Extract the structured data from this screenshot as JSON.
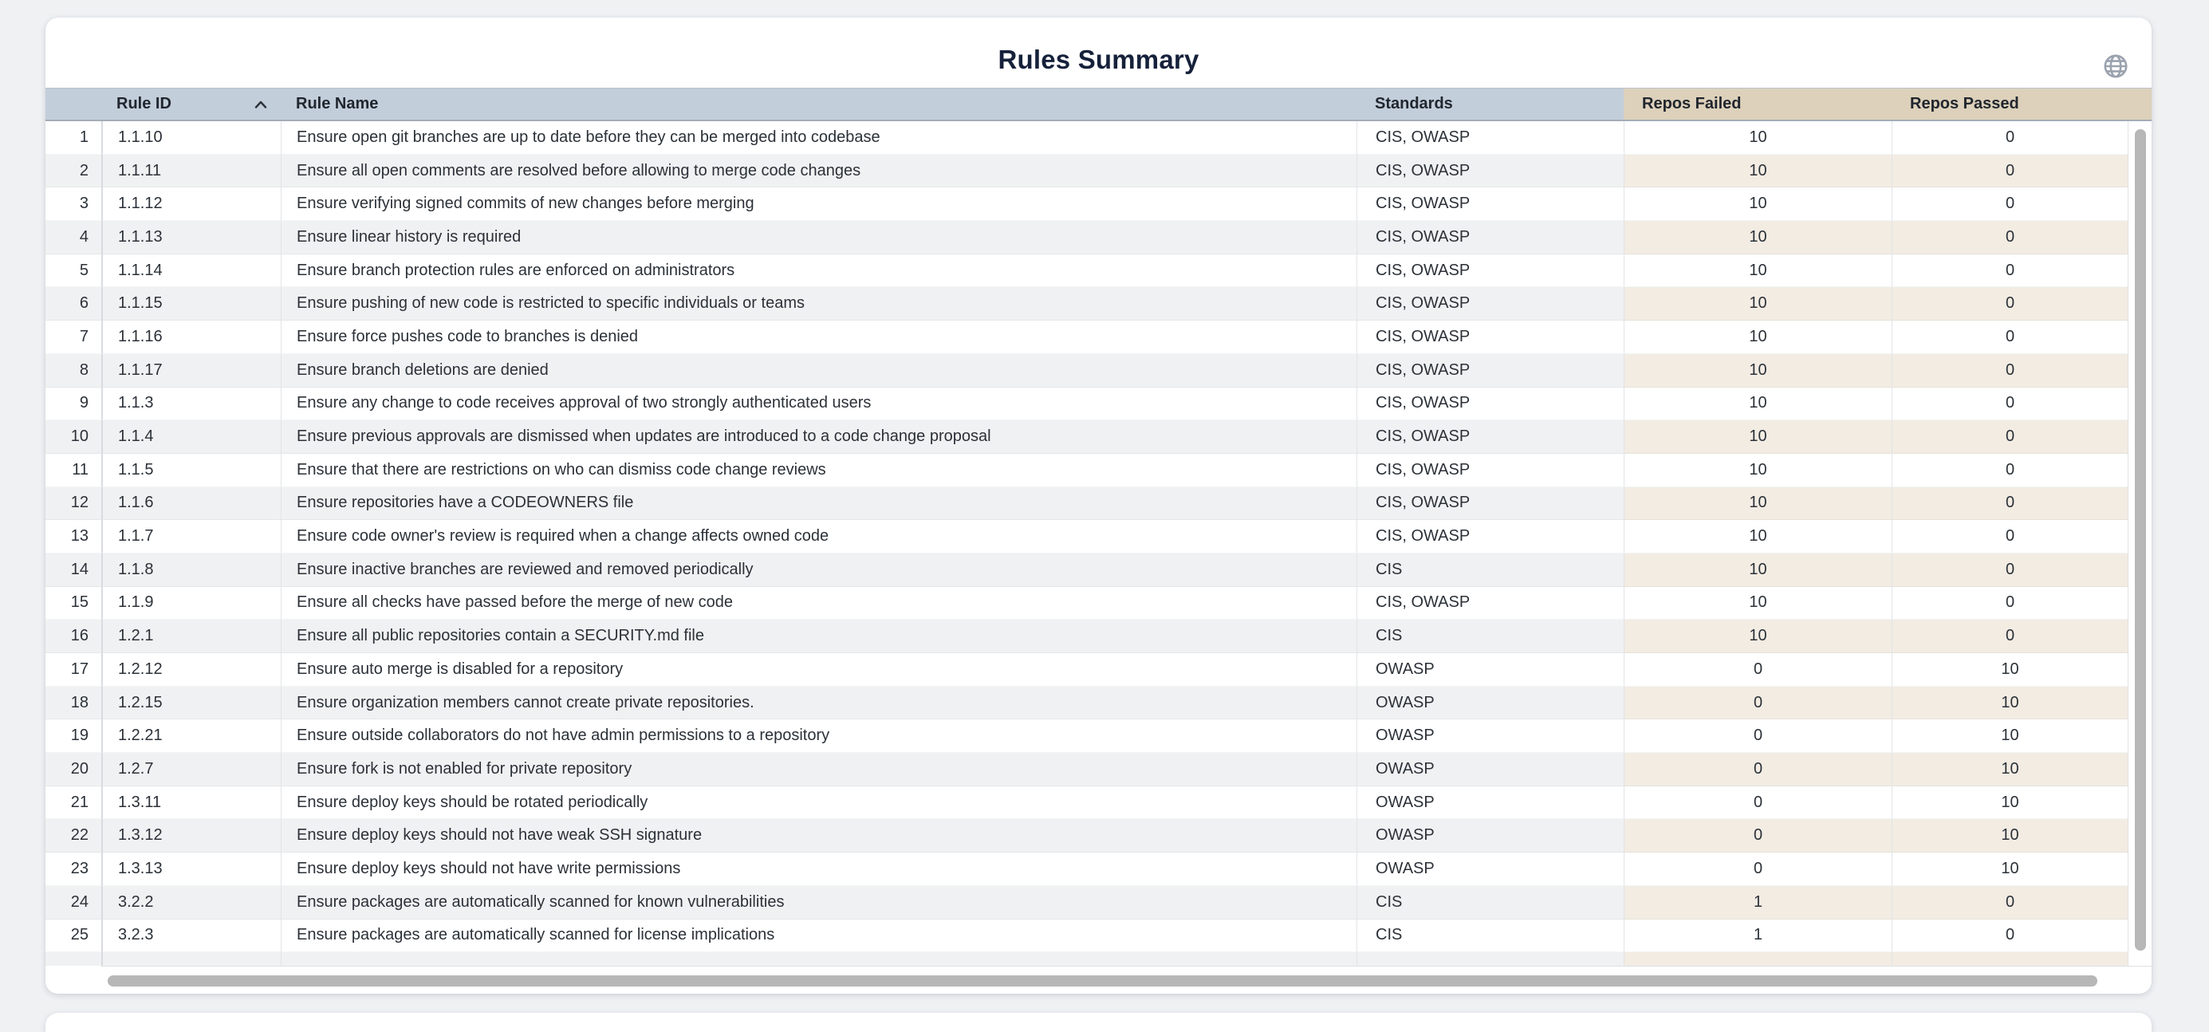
{
  "card": {
    "title": "Rules Summary"
  },
  "icons": {
    "globe": "globe-icon",
    "sort_ascending": "chevron-up-icon"
  },
  "colors": {
    "header_blue": "#c3cedb",
    "header_tan": "#ddd1bb",
    "row_alt_gray": "#f0f1f2",
    "row_alt_beige": "#f2ece3",
    "title_text": "#16213b",
    "scrollbar_thumb": "#b7b7b7"
  },
  "table": {
    "columns": [
      {
        "key": "row_number",
        "label": "",
        "group": "blue"
      },
      {
        "key": "rule_id",
        "label": "Rule ID",
        "group": "blue",
        "sort": "asc"
      },
      {
        "key": "rule_name",
        "label": "Rule Name",
        "group": "blue"
      },
      {
        "key": "standards",
        "label": "Standards",
        "group": "blue"
      },
      {
        "key": "repos_failed",
        "label": "Repos Failed",
        "group": "tan"
      },
      {
        "key": "repos_passed",
        "label": "Repos Passed",
        "group": "tan"
      }
    ],
    "rows": [
      {
        "n": "1",
        "rule_id": "1.1.10",
        "rule_name": "Ensure open git branches are up to date before they can be merged into codebase",
        "standards": "CIS, OWASP",
        "repos_failed": "10",
        "repos_passed": "0"
      },
      {
        "n": "2",
        "rule_id": "1.1.11",
        "rule_name": "Ensure all open comments are resolved before allowing to merge code changes",
        "standards": "CIS, OWASP",
        "repos_failed": "10",
        "repos_passed": "0"
      },
      {
        "n": "3",
        "rule_id": "1.1.12",
        "rule_name": "Ensure verifying signed commits of new changes before merging",
        "standards": "CIS, OWASP",
        "repos_failed": "10",
        "repos_passed": "0"
      },
      {
        "n": "4",
        "rule_id": "1.1.13",
        "rule_name": "Ensure linear history is required",
        "standards": "CIS, OWASP",
        "repos_failed": "10",
        "repos_passed": "0"
      },
      {
        "n": "5",
        "rule_id": "1.1.14",
        "rule_name": "Ensure branch protection rules are enforced on administrators",
        "standards": "CIS, OWASP",
        "repos_failed": "10",
        "repos_passed": "0"
      },
      {
        "n": "6",
        "rule_id": "1.1.15",
        "rule_name": "Ensure pushing of new code is restricted to specific individuals or teams",
        "standards": "CIS, OWASP",
        "repos_failed": "10",
        "repos_passed": "0"
      },
      {
        "n": "7",
        "rule_id": "1.1.16",
        "rule_name": "Ensure force pushes code to branches is denied",
        "standards": "CIS, OWASP",
        "repos_failed": "10",
        "repos_passed": "0"
      },
      {
        "n": "8",
        "rule_id": "1.1.17",
        "rule_name": "Ensure branch deletions are denied",
        "standards": "CIS, OWASP",
        "repos_failed": "10",
        "repos_passed": "0"
      },
      {
        "n": "9",
        "rule_id": "1.1.3",
        "rule_name": "Ensure any change to code receives approval of two strongly authenticated users",
        "standards": "CIS, OWASP",
        "repos_failed": "10",
        "repos_passed": "0"
      },
      {
        "n": "10",
        "rule_id": "1.1.4",
        "rule_name": "Ensure previous approvals are dismissed when updates are introduced to a code change proposal",
        "standards": "CIS, OWASP",
        "repos_failed": "10",
        "repos_passed": "0"
      },
      {
        "n": "11",
        "rule_id": "1.1.5",
        "rule_name": "Ensure that there are restrictions on who can dismiss code change reviews",
        "standards": "CIS, OWASP",
        "repos_failed": "10",
        "repos_passed": "0"
      },
      {
        "n": "12",
        "rule_id": "1.1.6",
        "rule_name": "Ensure repositories have a CODEOWNERS file",
        "standards": "CIS, OWASP",
        "repos_failed": "10",
        "repos_passed": "0"
      },
      {
        "n": "13",
        "rule_id": "1.1.7",
        "rule_name": "Ensure code owner's review is required when a change affects owned code",
        "standards": "CIS, OWASP",
        "repos_failed": "10",
        "repos_passed": "0"
      },
      {
        "n": "14",
        "rule_id": "1.1.8",
        "rule_name": "Ensure inactive branches are reviewed and removed periodically",
        "standards": "CIS",
        "repos_failed": "10",
        "repos_passed": "0"
      },
      {
        "n": "15",
        "rule_id": "1.1.9",
        "rule_name": "Ensure all checks have passed before the merge of new code",
        "standards": "CIS, OWASP",
        "repos_failed": "10",
        "repos_passed": "0"
      },
      {
        "n": "16",
        "rule_id": "1.2.1",
        "rule_name": "Ensure all public repositories contain a SECURITY.md file",
        "standards": "CIS",
        "repos_failed": "10",
        "repos_passed": "0"
      },
      {
        "n": "17",
        "rule_id": "1.2.12",
        "rule_name": "Ensure auto merge is disabled for a repository",
        "standards": "OWASP",
        "repos_failed": "0",
        "repos_passed": "10"
      },
      {
        "n": "18",
        "rule_id": "1.2.15",
        "rule_name": "Ensure organization members cannot create private repositories.",
        "standards": "OWASP",
        "repos_failed": "0",
        "repos_passed": "10"
      },
      {
        "n": "19",
        "rule_id": "1.2.21",
        "rule_name": "Ensure outside collaborators do not have admin permissions to a repository",
        "standards": "OWASP",
        "repos_failed": "0",
        "repos_passed": "10"
      },
      {
        "n": "20",
        "rule_id": "1.2.7",
        "rule_name": "Ensure fork is not enabled for private repository",
        "standards": "OWASP",
        "repos_failed": "0",
        "repos_passed": "10"
      },
      {
        "n": "21",
        "rule_id": "1.3.11",
        "rule_name": "Ensure deploy keys should be rotated periodically",
        "standards": "OWASP",
        "repos_failed": "0",
        "repos_passed": "10"
      },
      {
        "n": "22",
        "rule_id": "1.3.12",
        "rule_name": "Ensure deploy keys should not have weak SSH signature",
        "standards": "OWASP",
        "repos_failed": "0",
        "repos_passed": "10"
      },
      {
        "n": "23",
        "rule_id": "1.3.13",
        "rule_name": "Ensure deploy keys should not have write permissions",
        "standards": "OWASP",
        "repos_failed": "0",
        "repos_passed": "10"
      },
      {
        "n": "24",
        "rule_id": "3.2.2",
        "rule_name": "Ensure packages are automatically scanned for known vulnerabilities",
        "standards": "CIS",
        "repos_failed": "1",
        "repos_passed": "0"
      },
      {
        "n": "25",
        "rule_id": "3.2.3",
        "rule_name": "Ensure packages are automatically scanned for license implications",
        "standards": "CIS",
        "repos_failed": "1",
        "repos_passed": "0"
      }
    ]
  }
}
